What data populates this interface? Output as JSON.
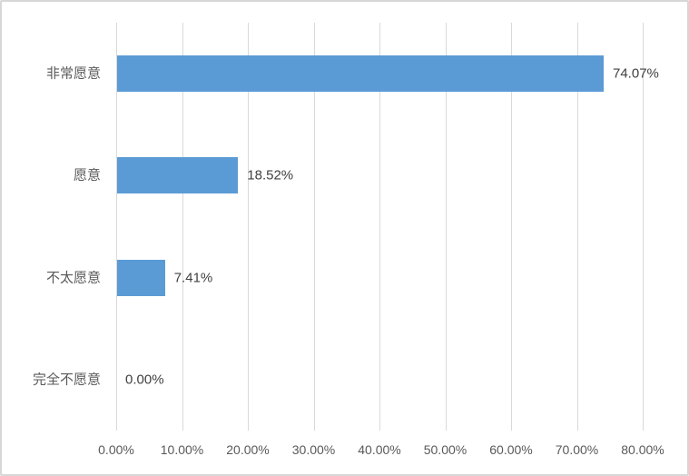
{
  "chart": {
    "bar_color": "#5b9bd5",
    "gridline_color": "#d9d9d9",
    "axis_label_color": "#595959",
    "data_label_color": "#404040",
    "border_color": "#d7d7d7",
    "background_color": "#ffffff"
  },
  "chart_data": {
    "type": "bar",
    "orientation": "horizontal",
    "title": "",
    "xlabel": "",
    "ylabel": "",
    "legend_position": "none",
    "grid": true,
    "categories": [
      "非常愿意",
      "愿意",
      "不太愿意",
      "完全不愿意"
    ],
    "values": [
      74.07,
      18.52,
      7.41,
      0.0
    ],
    "data_labels": [
      "74.07%",
      "18.52%",
      "7.41%",
      "0.00%"
    ],
    "x_ticks": [
      "0.00%",
      "10.00%",
      "20.00%",
      "30.00%",
      "40.00%",
      "50.00%",
      "60.00%",
      "70.00%",
      "80.00%"
    ],
    "x_tick_values": [
      0,
      10,
      20,
      30,
      40,
      50,
      60,
      70,
      80
    ],
    "xlim": [
      0,
      80
    ]
  }
}
